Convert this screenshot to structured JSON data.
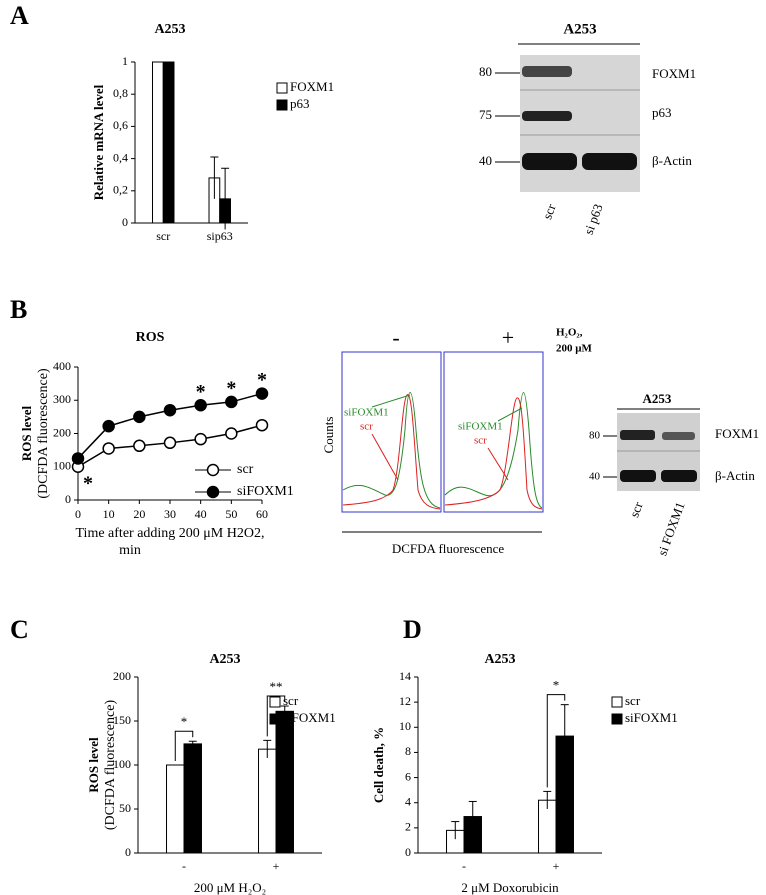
{
  "panel_labels": [
    "A",
    "B",
    "C",
    "D"
  ],
  "blot_a": {
    "title": "A253",
    "markers": [
      "80",
      "75",
      "40"
    ],
    "bands": [
      "FOXM1",
      "p63",
      "β-Actin"
    ],
    "lanes": [
      "scr",
      "si p63"
    ]
  },
  "flow": {
    "conditions": [
      "-",
      "+"
    ],
    "treatment": [
      "H₂O₂,",
      "200 μM"
    ],
    "ylabel": "Counts",
    "series": [
      "siFOXM1",
      "scr"
    ],
    "xlabel": "DCFDA fluorescence"
  },
  "blot_b": {
    "title": "A253",
    "markers": [
      "80",
      "40"
    ],
    "bands": [
      "FOXM1",
      "β-Actin"
    ],
    "lanes": [
      "scr",
      "si FOXM1"
    ]
  },
  "chart_data": [
    {
      "type": "bar",
      "title": "A253",
      "ylabel": "Relative mRNA level",
      "categories": [
        "scr",
        "sip63"
      ],
      "series": [
        {
          "name": "FOXM1",
          "color": "#ffffff",
          "values": [
            1,
            0.28
          ],
          "errors": [
            0,
            0.13
          ]
        },
        {
          "name": "p63",
          "color": "#000000",
          "values": [
            1,
            0.15
          ],
          "errors": [
            0,
            0.19
          ]
        }
      ],
      "ylim": [
        0,
        1
      ],
      "yticks": [
        0,
        {
          "value": 0.2,
          "label": "0,2"
        },
        {
          "value": 0.4,
          "label": "0,4"
        },
        {
          "value": 0.6,
          "label": "0,6"
        },
        {
          "value": 0.8,
          "label": "0,8"
        },
        1
      ]
    },
    {
      "type": "line",
      "title": "ROS",
      "ylabel": [
        "ROS level",
        "(DCFDA fluorescence)"
      ],
      "xlabel": [
        "Time after adding 200 μM H2O2,",
        "min"
      ],
      "x": [
        0,
        10,
        20,
        30,
        40,
        50,
        60
      ],
      "series": [
        {
          "name": "scr",
          "color": "#ffffff",
          "values": [
            100,
            155,
            163,
            172,
            183,
            200,
            225
          ]
        },
        {
          "name": "siFOXM1",
          "color": "#000000",
          "values": [
            125,
            222,
            250,
            270,
            285,
            295,
            320
          ]
        }
      ],
      "xlim": [
        0,
        60
      ],
      "xticks": [
        0,
        10,
        20,
        30,
        40,
        50,
        60
      ],
      "ylim": [
        0,
        400
      ],
      "yticks": [
        0,
        100,
        200,
        300,
        400
      ],
      "annotations": [
        "*",
        "*",
        "*",
        "*"
      ]
    },
    {
      "type": "bar",
      "title": "A253",
      "ylabel": [
        "ROS level",
        "(DCFDA fluorescence)"
      ],
      "xlabel": "200 μM H₂O₂",
      "categories": [
        "-",
        "+"
      ],
      "series": [
        {
          "name": "scr",
          "color": "#ffffff",
          "values": [
            100,
            118
          ],
          "errors": [
            0,
            10
          ]
        },
        {
          "name": "siFOXM1",
          "color": "#000000",
          "values": [
            124,
            161
          ],
          "errors": [
            3,
            6
          ]
        }
      ],
      "ylim": [
        0,
        200
      ],
      "yticks": [
        0,
        50,
        100,
        150,
        200
      ],
      "annotations": [
        "*",
        "**"
      ]
    },
    {
      "type": "bar",
      "title": "A253",
      "ylabel": "Cell death, %",
      "xlabel": "2 μM Doxorubicin",
      "categories": [
        "-",
        "+"
      ],
      "series": [
        {
          "name": "scr",
          "color": "#ffffff",
          "values": [
            1.8,
            4.2
          ],
          "errors": [
            0.7,
            0.7
          ]
        },
        {
          "name": "siFOXM1",
          "color": "#000000",
          "values": [
            2.9,
            9.3
          ],
          "errors": [
            1.2,
            2.5
          ]
        }
      ],
      "ylim": [
        0,
        14
      ],
      "yticks": [
        0,
        2,
        4,
        6,
        8,
        10,
        12,
        14
      ],
      "annotations": [
        "*"
      ]
    }
  ]
}
